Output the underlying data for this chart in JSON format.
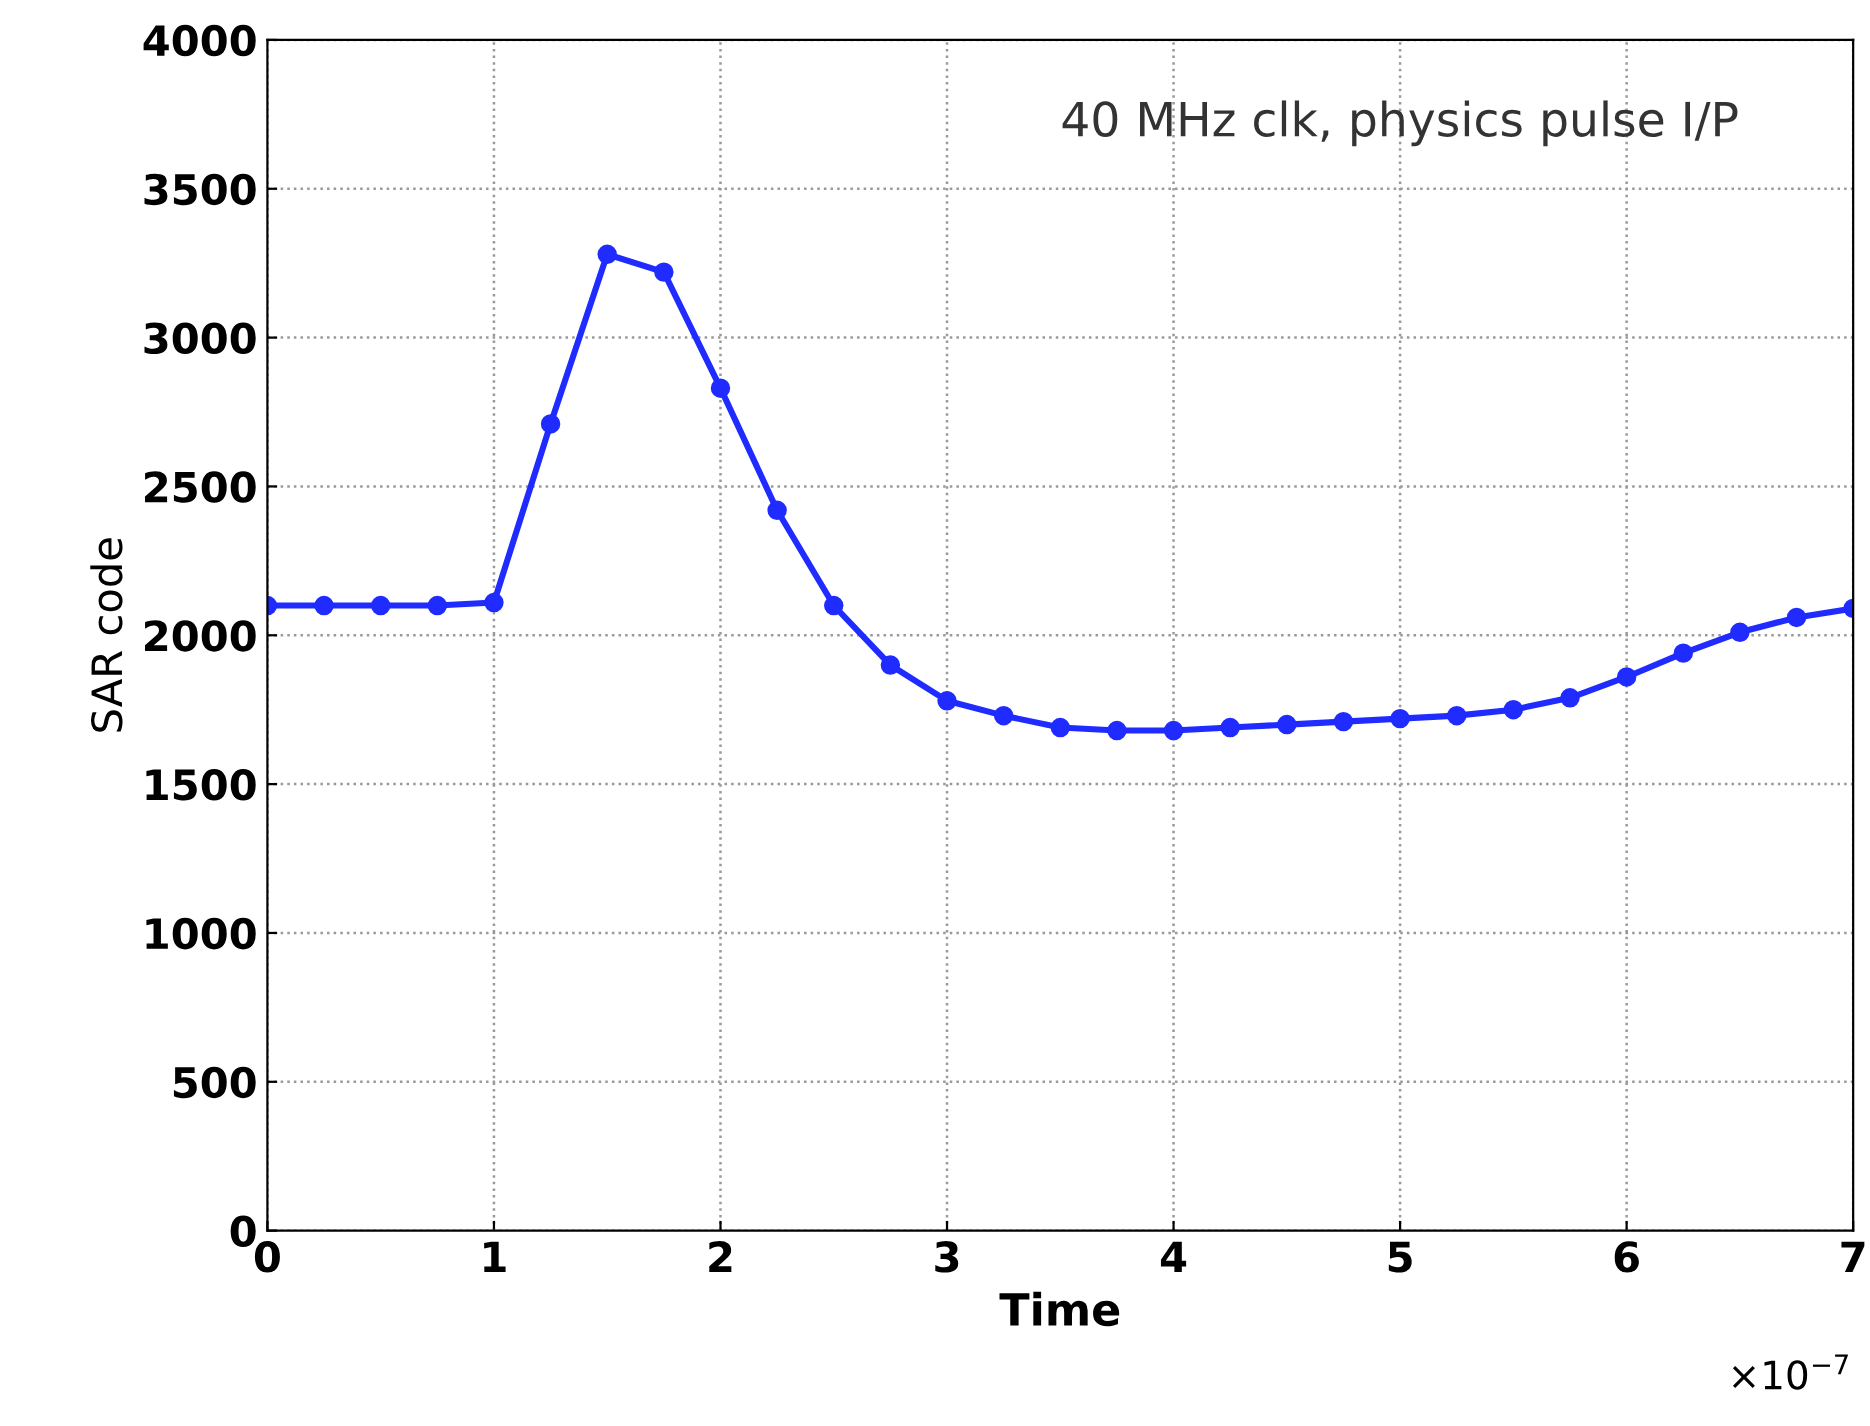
{
  "chart_data": {
    "type": "line",
    "xlabel": "Time",
    "ylabel": "SAR code",
    "annotations": [
      "40 MHz clk, physics pulse I/P",
      "×10$^{−7}$"
    ],
    "x": [
      0,
      0.25,
      0.5,
      0.75,
      1,
      1.25,
      1.5,
      1.75,
      2,
      2.25,
      2.5,
      2.75,
      3,
      3.25,
      3.5,
      3.75,
      4,
      4.25,
      4.5,
      4.75,
      5,
      5.25,
      5.5,
      5.75,
      6,
      6.25,
      6.5,
      6.75,
      7
    ],
    "series": [
      {
        "color": "#1f2bff",
        "values": [
          2100,
          2100,
          2100,
          2100,
          2110,
          2710,
          3280,
          3220,
          2830,
          2420,
          2100,
          1900,
          1780,
          1730,
          1690,
          1680,
          1680,
          1690,
          1700,
          1710,
          1720,
          1730,
          1750,
          1790,
          1860,
          1940,
          2010,
          2060,
          2090
        ]
      }
    ],
    "xlim": [
      0,
      7
    ],
    "ylim": [
      0,
      4000
    ],
    "xticks": [
      0,
      1,
      2,
      3,
      4,
      5,
      6,
      7
    ],
    "yticks": [
      0,
      500,
      1000,
      1500,
      2000,
      2500,
      3000,
      3500,
      4000
    ],
    "grid": true,
    "marker": "circle",
    "line_style": "solid"
  }
}
